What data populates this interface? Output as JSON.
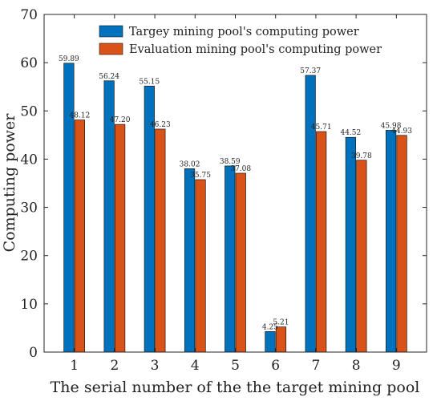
{
  "chart_data": {
    "type": "bar",
    "title": "",
    "xlabel": "The serial number of the the target mining pool",
    "ylabel": "Computing power",
    "categories": [
      "1",
      "2",
      "3",
      "4",
      "5",
      "6",
      "7",
      "8",
      "9"
    ],
    "ylim": [
      0,
      70
    ],
    "yticks": [
      0,
      10,
      20,
      30,
      40,
      50,
      60,
      70
    ],
    "grid": false,
    "legend_position": "top-center",
    "series": [
      {
        "name": "Targey mining pool's computing power",
        "color": "#0072BD",
        "values": [
          59.89,
          56.24,
          55.15,
          38.02,
          38.59,
          4.25,
          57.37,
          44.52,
          45.98
        ],
        "labels": [
          "59.89",
          "56.24",
          "55.15",
          "38.02",
          "38.59",
          "4.25",
          "57.37",
          "44.52",
          "45.98"
        ]
      },
      {
        "name": "Evaluation mining pool's computing power",
        "color": "#D95319",
        "values": [
          48.12,
          47.2,
          46.23,
          35.75,
          37.08,
          5.21,
          45.71,
          39.78,
          44.93
        ],
        "labels": [
          "48.12",
          "47.20",
          "46.23",
          "35.75",
          "37.08",
          "5.21",
          "45.71",
          "39.78",
          "44.93"
        ]
      }
    ]
  }
}
